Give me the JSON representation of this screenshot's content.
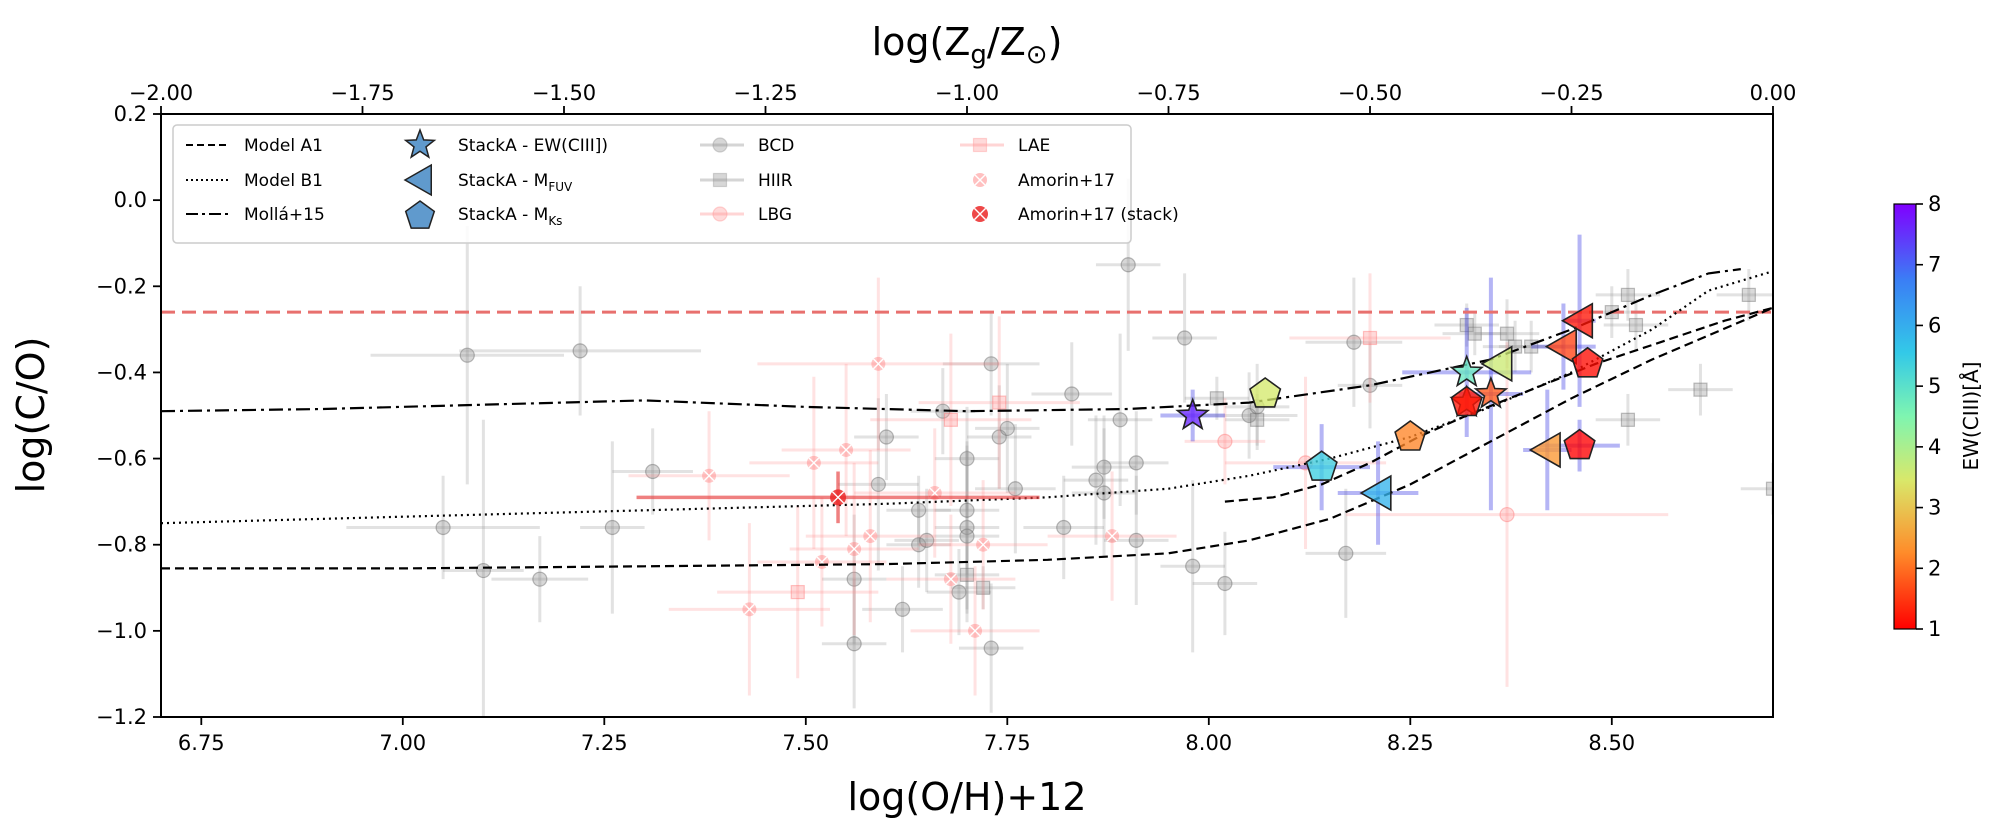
{
  "chart_data": {
    "type": "scatter",
    "xlabel": "log(O/H)+12",
    "ylabel": "log(C/O)",
    "top_xlabel": "log(Z_g/Z_⊙)",
    "top_xlabel_parts": {
      "base": "log(Z",
      "sub1": "g",
      "mid": "/Z",
      "sub2": "⊙",
      "end": ")"
    },
    "xlim": [
      6.7,
      8.7
    ],
    "ylim": [
      -1.2,
      0.2
    ],
    "top_xlim": [
      -2.0,
      0.0
    ],
    "x_ticks": [
      6.75,
      7.0,
      7.25,
      7.5,
      7.75,
      8.0,
      8.25,
      8.5
    ],
    "x_tick_labels": [
      "6.75",
      "7.00",
      "7.25",
      "7.50",
      "7.75",
      "8.00",
      "8.25",
      "8.50"
    ],
    "y_ticks": [
      0.2,
      0.0,
      -0.2,
      -0.4,
      -0.6,
      -0.8,
      -1.0,
      -1.2
    ],
    "y_tick_labels": [
      "0.2",
      "0.0",
      "−0.2",
      "−0.4",
      "−0.6",
      "−0.8",
      "−1.0",
      "−1.2"
    ],
    "top_x_ticks": [
      -2.0,
      -1.75,
      -1.5,
      -1.25,
      -1.0,
      -0.75,
      -0.5,
      -0.25,
      0.0
    ],
    "top_x_tick_labels": [
      "−2.00",
      "−1.75",
      "−1.50",
      "−1.25",
      "−1.00",
      "−0.75",
      "−0.50",
      "−0.25",
      "0.00"
    ],
    "solar_line_y": -0.26,
    "colorbar": {
      "label": "EW(CIII)[Å]",
      "min": 1,
      "max": 8,
      "ticks": [
        1,
        2,
        3,
        4,
        5,
        6,
        7,
        8
      ],
      "tick_labels": [
        "1",
        "2",
        "3",
        "4",
        "5",
        "6",
        "7",
        "8"
      ]
    },
    "legend": [
      {
        "label": "Model A1",
        "kind": "dashed"
      },
      {
        "label": "Model B1",
        "kind": "dotted"
      },
      {
        "label": "Mollá+15",
        "kind": "dashdot"
      },
      {
        "label": "StackA - EW(CIII])",
        "kind": "star"
      },
      {
        "label": "StackA - M",
        "sub": "FUV",
        "kind": "triangle"
      },
      {
        "label": "StackA - M",
        "sub": "Ks",
        "kind": "pentagon"
      },
      {
        "label": "BCD",
        "kind": "bcd"
      },
      {
        "label": "HIIR",
        "kind": "hiir"
      },
      {
        "label": "LBG",
        "kind": "lbg"
      },
      {
        "label": "LAE",
        "kind": "lae"
      },
      {
        "label": "Amorin+17",
        "kind": "amorin"
      },
      {
        "label": "Amorin+17 (stack)",
        "kind": "amorin_stack"
      }
    ],
    "models": {
      "model_a1_lower": {
        "x": [
          6.7,
          7.0,
          7.3,
          7.6,
          7.8,
          7.95,
          8.05,
          8.15,
          8.25,
          8.35,
          8.45,
          8.55,
          8.65,
          8.7
        ],
        "y": [
          -0.855,
          -0.855,
          -0.85,
          -0.845,
          -0.835,
          -0.82,
          -0.79,
          -0.74,
          -0.66,
          -0.56,
          -0.46,
          -0.37,
          -0.29,
          -0.25
        ]
      },
      "model_a1_upper": {
        "x": [
          8.02,
          8.08,
          8.14,
          8.2,
          8.26,
          8.32,
          8.4,
          8.48,
          8.56,
          8.64,
          8.7
        ],
        "y": [
          -0.7,
          -0.69,
          -0.66,
          -0.61,
          -0.55,
          -0.5,
          -0.44,
          -0.38,
          -0.33,
          -0.28,
          -0.25
        ]
      },
      "model_b1": {
        "x": [
          6.7,
          7.0,
          7.3,
          7.6,
          7.8,
          7.95,
          8.05,
          8.15,
          8.25,
          8.35,
          8.45,
          8.55,
          8.62,
          8.7
        ],
        "y": [
          -0.75,
          -0.735,
          -0.72,
          -0.705,
          -0.69,
          -0.67,
          -0.64,
          -0.6,
          -0.55,
          -0.48,
          -0.4,
          -0.3,
          -0.21,
          -0.165
        ]
      },
      "molla15": {
        "x": [
          6.7,
          6.9,
          7.1,
          7.3,
          7.5,
          7.7,
          7.9,
          8.05,
          8.2,
          8.35,
          8.45,
          8.55,
          8.62,
          8.66
        ],
        "y": [
          -0.49,
          -0.485,
          -0.475,
          -0.465,
          -0.48,
          -0.49,
          -0.485,
          -0.47,
          -0.43,
          -0.37,
          -0.3,
          -0.22,
          -0.17,
          -0.16
        ]
      }
    },
    "stacks": [
      {
        "marker": "star",
        "x": 7.98,
        "y": -0.5,
        "ew": 7.6
      },
      {
        "marker": "star",
        "x": 8.32,
        "y": -0.4,
        "ew": 4.8
      },
      {
        "marker": "star",
        "x": 8.35,
        "y": -0.45,
        "ew": 1.8
      },
      {
        "marker": "star",
        "x": 8.32,
        "y": -0.47,
        "ew": 1.3
      },
      {
        "marker": "triangle",
        "x": 8.46,
        "y": -0.28,
        "ew": 1.2
      },
      {
        "marker": "triangle",
        "x": 8.44,
        "y": -0.34,
        "ew": 1.6
      },
      {
        "marker": "triangle",
        "x": 8.36,
        "y": -0.38,
        "ew": 3.6
      },
      {
        "marker": "triangle",
        "x": 8.42,
        "y": -0.58,
        "ew": 2.4
      },
      {
        "marker": "triangle",
        "x": 8.21,
        "y": -0.68,
        "ew": 5.9
      },
      {
        "marker": "pentagon",
        "x": 8.07,
        "y": -0.45,
        "ew": 3.5
      },
      {
        "marker": "pentagon",
        "x": 8.47,
        "y": -0.38,
        "ew": 1.1
      },
      {
        "marker": "pentagon",
        "x": 8.25,
        "y": -0.55,
        "ew": 2.2
      },
      {
        "marker": "pentagon",
        "x": 8.14,
        "y": -0.62,
        "ew": 5.4
      },
      {
        "marker": "pentagon",
        "x": 8.46,
        "y": -0.57,
        "ew": 1.0
      },
      {
        "marker": "pentagon",
        "x": 8.32,
        "y": -0.47,
        "ew": 1.2
      }
    ],
    "stack_errorbars": [
      {
        "x": 7.98,
        "y": -0.5,
        "xerr": 0.04,
        "yerr": 0.06
      },
      {
        "x": 8.32,
        "y": -0.4,
        "xerr": 0.08,
        "yerr": 0.15
      },
      {
        "x": 8.35,
        "y": -0.45,
        "xerr": 0.04,
        "yerr": 0.27
      },
      {
        "x": 8.21,
        "y": -0.68,
        "xerr": 0.05,
        "yerr": 0.12
      },
      {
        "x": 8.14,
        "y": -0.62,
        "xerr": 0.06,
        "yerr": 0.1
      },
      {
        "x": 8.42,
        "y": -0.58,
        "xerr": 0.03,
        "yerr": 0.14
      },
      {
        "x": 8.46,
        "y": -0.28,
        "xerr": 0.02,
        "yerr": 0.2
      },
      {
        "x": 8.46,
        "y": -0.57,
        "xerr": 0.05,
        "yerr": 0.06
      },
      {
        "x": 8.44,
        "y": -0.34,
        "xerr": 0.04,
        "yerr": 0.1
      }
    ],
    "bcd": [
      {
        "x": 7.05,
        "y": -0.76,
        "xerr": 0.12,
        "yerr": 0.12
      },
      {
        "x": 7.08,
        "y": -0.36,
        "xerr": 0.12,
        "yerr": 0.3
      },
      {
        "x": 7.1,
        "y": -0.86,
        "xerr": 0.05,
        "yerr": 0.35
      },
      {
        "x": 7.17,
        "y": -0.88,
        "xerr": 0.06,
        "yerr": 0.1
      },
      {
        "x": 7.22,
        "y": -0.35,
        "xerr": 0.15,
        "yerr": 0.15
      },
      {
        "x": 7.26,
        "y": -0.76,
        "xerr": 0.04,
        "yerr": 0.2
      },
      {
        "x": 7.31,
        "y": -0.63,
        "xerr": 0.05,
        "yerr": 0.1
      },
      {
        "x": 7.56,
        "y": -0.88,
        "xerr": 0.04,
        "yerr": 0.15
      },
      {
        "x": 7.56,
        "y": -1.03,
        "xerr": 0.04,
        "yerr": 0.15
      },
      {
        "x": 7.59,
        "y": -0.66,
        "xerr": 0.05,
        "yerr": 0.2
      },
      {
        "x": 7.6,
        "y": -0.55,
        "xerr": 0.04,
        "yerr": 0.1
      },
      {
        "x": 7.62,
        "y": -0.95,
        "xerr": 0.05,
        "yerr": 0.1
      },
      {
        "x": 7.64,
        "y": -0.72,
        "xerr": 0.04,
        "yerr": 0.08
      },
      {
        "x": 7.64,
        "y": -0.8,
        "xerr": 0.04,
        "yerr": 0.1
      },
      {
        "x": 7.65,
        "y": -0.79,
        "xerr": 0.04,
        "yerr": 0.12
      },
      {
        "x": 7.67,
        "y": -0.49,
        "xerr": 0.04,
        "yerr": 0.1
      },
      {
        "x": 7.69,
        "y": -0.91,
        "xerr": 0.04,
        "yerr": 0.1
      },
      {
        "x": 7.7,
        "y": -0.6,
        "xerr": 0.04,
        "yerr": 0.12
      },
      {
        "x": 7.7,
        "y": -0.76,
        "xerr": 0.04,
        "yerr": 0.2
      },
      {
        "x": 7.7,
        "y": -0.78,
        "xerr": 0.04,
        "yerr": 0.2
      },
      {
        "x": 7.7,
        "y": -0.72,
        "xerr": 0.04,
        "yerr": 0.15
      },
      {
        "x": 7.73,
        "y": -1.04,
        "xerr": 0.04,
        "yerr": 0.15
      },
      {
        "x": 7.73,
        "y": -0.38,
        "xerr": 0.06,
        "yerr": 0.12
      },
      {
        "x": 7.74,
        "y": -0.55,
        "xerr": 0.04,
        "yerr": 0.12
      },
      {
        "x": 7.75,
        "y": -0.53,
        "xerr": 0.04,
        "yerr": 0.15
      },
      {
        "x": 7.76,
        "y": -0.67,
        "xerr": 0.05,
        "yerr": 0.15
      },
      {
        "x": 7.82,
        "y": -0.76,
        "xerr": 0.05,
        "yerr": 0.12
      },
      {
        "x": 7.83,
        "y": -0.45,
        "xerr": 0.05,
        "yerr": 0.12
      },
      {
        "x": 7.86,
        "y": -0.65,
        "xerr": 0.04,
        "yerr": 0.15
      },
      {
        "x": 7.87,
        "y": -0.62,
        "xerr": 0.04,
        "yerr": 0.12
      },
      {
        "x": 7.87,
        "y": -0.68,
        "xerr": 0.04,
        "yerr": 0.15
      },
      {
        "x": 7.89,
        "y": -0.51,
        "xerr": 0.04,
        "yerr": 0.2
      },
      {
        "x": 7.9,
        "y": -0.15,
        "xerr": 0.04,
        "yerr": 0.2
      },
      {
        "x": 7.91,
        "y": -0.61,
        "xerr": 0.04,
        "yerr": 0.12
      },
      {
        "x": 7.91,
        "y": -0.79,
        "xerr": 0.04,
        "yerr": 0.15
      },
      {
        "x": 7.97,
        "y": -0.32,
        "xerr": 0.04,
        "yerr": 0.15
      },
      {
        "x": 7.98,
        "y": -0.85,
        "xerr": 0.04,
        "yerr": 0.2
      },
      {
        "x": 8.02,
        "y": -0.89,
        "xerr": 0.04,
        "yerr": 0.12
      },
      {
        "x": 8.05,
        "y": -0.5,
        "xerr": 0.06,
        "yerr": 0.1
      },
      {
        "x": 8.06,
        "y": -0.48,
        "xerr": 0.04,
        "yerr": 0.1
      },
      {
        "x": 8.17,
        "y": -0.82,
        "xerr": 0.05,
        "yerr": 0.15
      },
      {
        "x": 8.18,
        "y": -0.33,
        "xerr": 0.06,
        "yerr": 0.15
      },
      {
        "x": 8.2,
        "y": -0.43,
        "xerr": 0.04,
        "yerr": 0.1
      }
    ],
    "hiir": [
      {
        "x": 7.7,
        "y": -0.87,
        "xerr": 0.04,
        "yerr": 0.08
      },
      {
        "x": 7.72,
        "y": -0.9,
        "xerr": 0.04,
        "yerr": 0.05
      },
      {
        "x": 8.01,
        "y": -0.46,
        "xerr": 0.04,
        "yerr": 0.05
      },
      {
        "x": 8.06,
        "y": -0.51,
        "xerr": 0.04,
        "yerr": 0.06
      },
      {
        "x": 8.32,
        "y": -0.29,
        "xerr": 0.04,
        "yerr": 0.05
      },
      {
        "x": 8.33,
        "y": -0.31,
        "xerr": 0.04,
        "yerr": 0.05
      },
      {
        "x": 8.37,
        "y": -0.31,
        "xerr": 0.04,
        "yerr": 0.08
      },
      {
        "x": 8.38,
        "y": -0.34,
        "xerr": 0.04,
        "yerr": 0.06
      },
      {
        "x": 8.4,
        "y": -0.34,
        "xerr": 0.04,
        "yerr": 0.06
      },
      {
        "x": 8.5,
        "y": -0.26,
        "xerr": 0.04,
        "yerr": 0.06
      },
      {
        "x": 8.52,
        "y": -0.22,
        "xerr": 0.04,
        "yerr": 0.06
      },
      {
        "x": 8.53,
        "y": -0.29,
        "xerr": 0.04,
        "yerr": 0.06
      },
      {
        "x": 8.52,
        "y": -0.51,
        "xerr": 0.04,
        "yerr": 0.06
      },
      {
        "x": 8.61,
        "y": -0.44,
        "xerr": 0.04,
        "yerr": 0.06
      },
      {
        "x": 8.67,
        "y": -0.22,
        "xerr": 0.04,
        "yerr": 0.06
      },
      {
        "x": 8.7,
        "y": -0.67,
        "xerr": 0.04,
        "yerr": 0.06
      }
    ],
    "lbg": [
      {
        "x": 8.37,
        "y": -0.73,
        "xerr": 0.2,
        "yerr": 0.4
      },
      {
        "x": 8.02,
        "y": -0.56,
        "xerr": 0.05,
        "yerr": 0.1
      },
      {
        "x": 8.12,
        "y": -0.61,
        "xerr": 0.1,
        "yerr": 0.2
      }
    ],
    "lae": [
      {
        "x": 7.49,
        "y": -0.91,
        "xerr": 0.1,
        "yerr": 0.2
      },
      {
        "x": 7.68,
        "y": -0.51,
        "xerr": 0.1,
        "yerr": 0.2
      },
      {
        "x": 7.74,
        "y": -0.47,
        "xerr": 0.1,
        "yerr": 0.2
      },
      {
        "x": 8.2,
        "y": -0.32,
        "xerr": 0.1,
        "yerr": 0.15
      }
    ],
    "amorin17": [
      {
        "x": 7.38,
        "y": -0.64,
        "xerr": 0.1,
        "yerr": 0.15
      },
      {
        "x": 7.43,
        "y": -0.95,
        "xerr": 0.1,
        "yerr": 0.2
      },
      {
        "x": 7.51,
        "y": -0.61,
        "xerr": 0.08,
        "yerr": 0.2
      },
      {
        "x": 7.55,
        "y": -0.58,
        "xerr": 0.08,
        "yerr": 0.2
      },
      {
        "x": 7.56,
        "y": -0.81,
        "xerr": 0.08,
        "yerr": 0.2
      },
      {
        "x": 7.58,
        "y": -0.78,
        "xerr": 0.08,
        "yerr": 0.2
      },
      {
        "x": 7.59,
        "y": -0.38,
        "xerr": 0.15,
        "yerr": 0.2
      },
      {
        "x": 7.66,
        "y": -0.68,
        "xerr": 0.1,
        "yerr": 0.15
      },
      {
        "x": 7.68,
        "y": -0.88,
        "xerr": 0.08,
        "yerr": 0.15
      },
      {
        "x": 7.71,
        "y": -1.0,
        "xerr": 0.08,
        "yerr": 0.15
      },
      {
        "x": 7.72,
        "y": -0.8,
        "xerr": 0.08,
        "yerr": 0.15
      },
      {
        "x": 7.52,
        "y": -0.84,
        "xerr": 0.08,
        "yerr": 0.15
      },
      {
        "x": 7.88,
        "y": -0.78,
        "xerr": 0.08,
        "yerr": 0.15
      }
    ],
    "amorin17_stack": [
      {
        "x": 7.54,
        "y": -0.69,
        "xerr": 0.25,
        "yerr": 0.06
      }
    ]
  }
}
